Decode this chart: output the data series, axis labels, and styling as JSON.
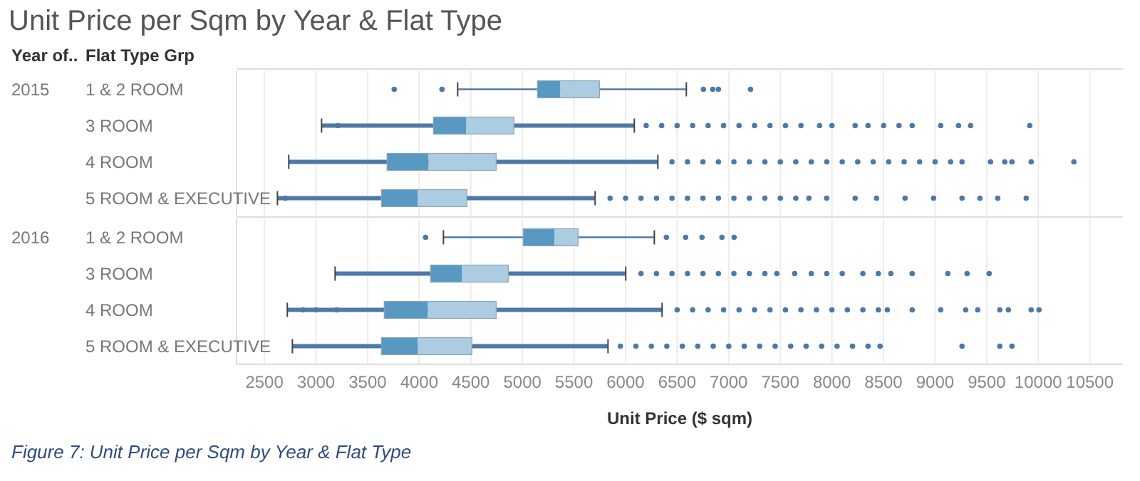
{
  "chart_data": [
    {
      "type": "box",
      "title": "Unit Price per Sqm by Year & Flat Type",
      "annotations": [
        "Year of..",
        "Flat Type Grp"
      ],
      "ylabel": "2015",
      "categories": [
        "1 & 2 ROOM",
        "3 ROOM",
        "4 ROOM",
        "5 ROOM & EXECUTIVE"
      ],
      "color": "#4e79a7",
      "colors": [
        "#5799c2",
        "#5799c2",
        "#5799c2",
        "#5799c2"
      ],
      "xlim": [
        2230,
        10820
      ],
      "xticks": [
        2500,
        3000,
        3500,
        4000,
        4500,
        5000,
        5500,
        6000,
        6500,
        7000,
        7500,
        8000,
        8500,
        9000,
        9500,
        10000,
        10500
      ],
      "grid": "x",
      "tick_labels": "y",
      "orientation": "horizontal",
      "boxes": [
        {
          "low": 4373,
          "q1": 5146,
          "median": 5367,
          "q3": 5747,
          "high": 6589,
          "outliers": [
            3758,
            4221,
            6755,
            6845,
            6900,
            7211
          ]
        },
        {
          "low": 3054,
          "q1": 4138,
          "median": 4455,
          "q3": 4918,
          "high": 6085,
          "outliers": [
            3213,
            6200,
            6350,
            6500,
            6650,
            6800,
            6950,
            7100,
            7250,
            7400,
            7550,
            7700,
            7880,
            8000,
            8225,
            8350,
            8501,
            8650,
            8778,
            9054,
            9227,
            9344,
            9917
          ]
        },
        {
          "low": 2736,
          "q1": 3689,
          "median": 4090,
          "q3": 4746,
          "high": 6313,
          "outliers": [
            6450,
            6600,
            6750,
            6900,
            7050,
            7200,
            7350,
            7500,
            7650,
            7800,
            7950,
            8100,
            8250,
            8400,
            8550,
            8700,
            8850,
            9000,
            9150,
            9261,
            9537,
            9675,
            9745,
            9931,
            10345
          ]
        },
        {
          "low": 2626,
          "q1": 3634,
          "median": 3986,
          "q3": 4462,
          "high": 5705,
          "outliers": [
            2702,
            5850,
            6000,
            6150,
            6300,
            6450,
            6600,
            6750,
            6900,
            7050,
            7200,
            7350,
            7500,
            7650,
            7777,
            7949,
            8225,
            8432,
            8709,
            8985,
            9261,
            9434,
            9607,
            9883
          ]
        }
      ]
    },
    {
      "type": "box",
      "annotations": [
        "Figure 7: Unit Price per Sqm by Year & Flat Type"
      ],
      "ylabel": "2016",
      "xlabel": "Unit Price ($ sqm)",
      "categories": [
        "1 & 2 ROOM",
        "3 ROOM",
        "4 ROOM",
        "5 ROOM & EXECUTIVE"
      ],
      "color": "#4e79a7",
      "colors": [
        "#5799c2",
        "#5799c2",
        "#5799c2",
        "#5799c2"
      ],
      "xlim": [
        2230,
        10820
      ],
      "xticks": [
        2500,
        3000,
        3500,
        4000,
        4500,
        5000,
        5500,
        6000,
        6500,
        7000,
        7500,
        8000,
        8500,
        9000,
        9500,
        10000,
        10500
      ],
      "grid": "x",
      "orientation": "horizontal",
      "boxes": [
        {
          "low": 4235,
          "q1": 5008,
          "median": 5312,
          "q3": 5540,
          "high": 6279,
          "outliers": [
            4062,
            6396,
            6582,
            6741,
            6934,
            7052
          ]
        },
        {
          "low": 3185,
          "q1": 4110,
          "median": 4414,
          "q3": 4863,
          "high": 6002,
          "outliers": [
            6150,
            6300,
            6450,
            6600,
            6750,
            6900,
            7050,
            7200,
            7350,
            7466,
            7639,
            7800,
            7950,
            8100,
            8300,
            8450,
            8571,
            8778,
            9123,
            9310,
            9524
          ]
        },
        {
          "low": 2722,
          "q1": 3661,
          "median": 4083,
          "q3": 4746,
          "high": 6354,
          "outliers": [
            2874,
            3000,
            3200,
            6500,
            6650,
            6800,
            6950,
            7100,
            7250,
            7400,
            7550,
            7700,
            7850,
            8000,
            8150,
            8300,
            8450,
            8537,
            8778,
            9054,
            9296,
            9413,
            9627,
            9710,
            9931,
            10007
          ]
        },
        {
          "low": 2771,
          "q1": 3634,
          "median": 3986,
          "q3": 4511,
          "high": 5830,
          "outliers": [
            5950,
            6100,
            6250,
            6400,
            6550,
            6700,
            6850,
            7000,
            7150,
            7300,
            7450,
            7600,
            7750,
            7900,
            8050,
            8200,
            8350,
            8467,
            9261,
            9627,
            9745
          ]
        }
      ]
    }
  ]
}
